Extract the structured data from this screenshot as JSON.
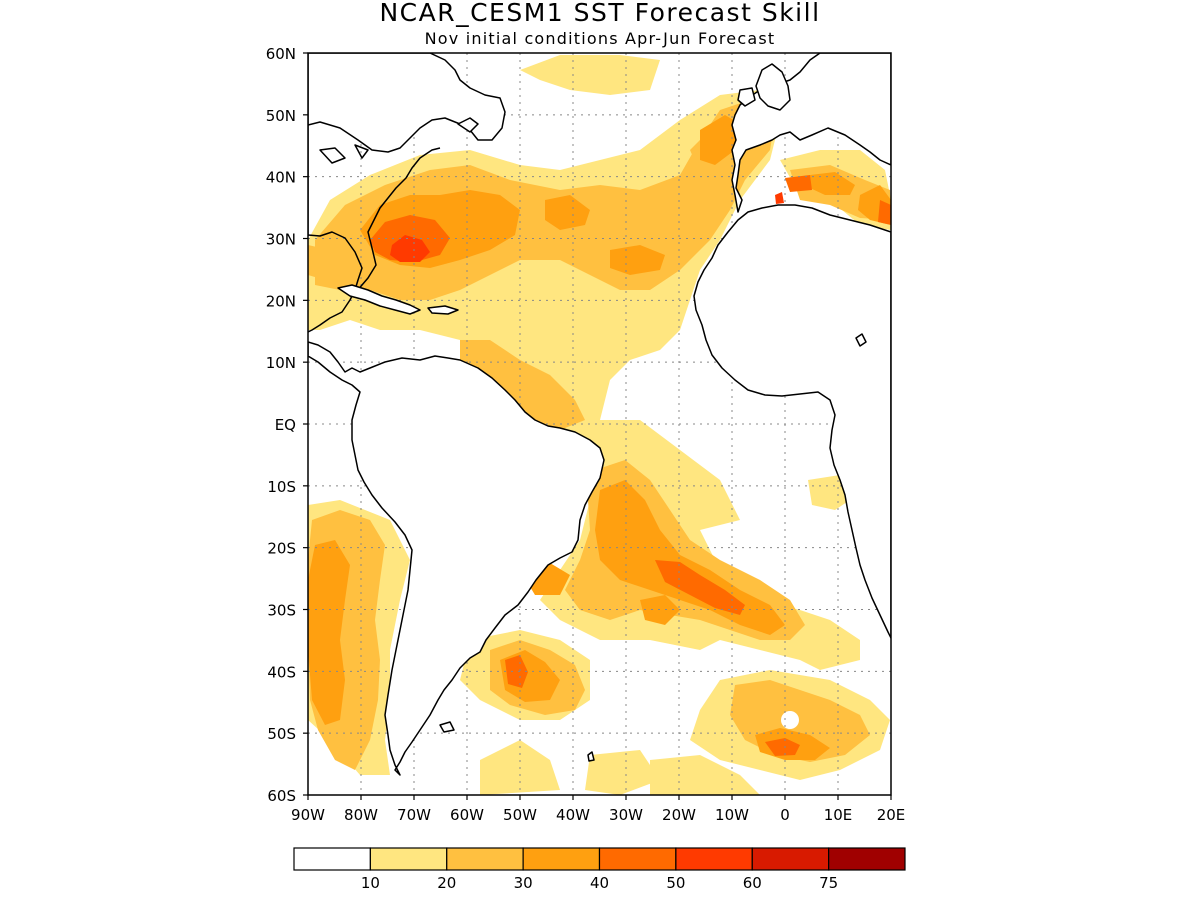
{
  "title": "NCAR_CESM1  SST Forecast Skill",
  "subtitle": "Nov initial conditions  Apr-Jun Forecast",
  "map": {
    "lon_range": [
      -90,
      20
    ],
    "lat_range": [
      -60,
      60
    ],
    "lon_ticks": [
      {
        "value": -90,
        "label": "90W"
      },
      {
        "value": -80,
        "label": "80W"
      },
      {
        "value": -70,
        "label": "70W"
      },
      {
        "value": -60,
        "label": "60W"
      },
      {
        "value": -50,
        "label": "50W"
      },
      {
        "value": -40,
        "label": "40W"
      },
      {
        "value": -30,
        "label": "30W"
      },
      {
        "value": -20,
        "label": "20W"
      },
      {
        "value": -10,
        "label": "10W"
      },
      {
        "value": 0,
        "label": "0"
      },
      {
        "value": 10,
        "label": "10E"
      },
      {
        "value": 20,
        "label": "20E"
      }
    ],
    "lat_ticks": [
      {
        "value": 60,
        "label": "60N"
      },
      {
        "value": 50,
        "label": "50N"
      },
      {
        "value": 40,
        "label": "40N"
      },
      {
        "value": 30,
        "label": "30N"
      },
      {
        "value": 20,
        "label": "20N"
      },
      {
        "value": 10,
        "label": "10N"
      },
      {
        "value": 0,
        "label": "EQ"
      },
      {
        "value": -10,
        "label": "10S"
      },
      {
        "value": -20,
        "label": "20S"
      },
      {
        "value": -30,
        "label": "30S"
      },
      {
        "value": -40,
        "label": "40S"
      },
      {
        "value": -50,
        "label": "50S"
      },
      {
        "value": -60,
        "label": "60S"
      }
    ],
    "gridlines": "dotted"
  },
  "colorbar": {
    "levels": [
      10,
      20,
      30,
      40,
      50,
      60,
      75
    ],
    "labels": [
      "10",
      "20",
      "30",
      "40",
      "50",
      "60",
      "75"
    ],
    "colors": [
      "#ffffff",
      "#ffe680",
      "#ffc040",
      "#ffa010",
      "#ff6a00",
      "#ff3a00",
      "#d81a00",
      "#a00000"
    ]
  }
}
